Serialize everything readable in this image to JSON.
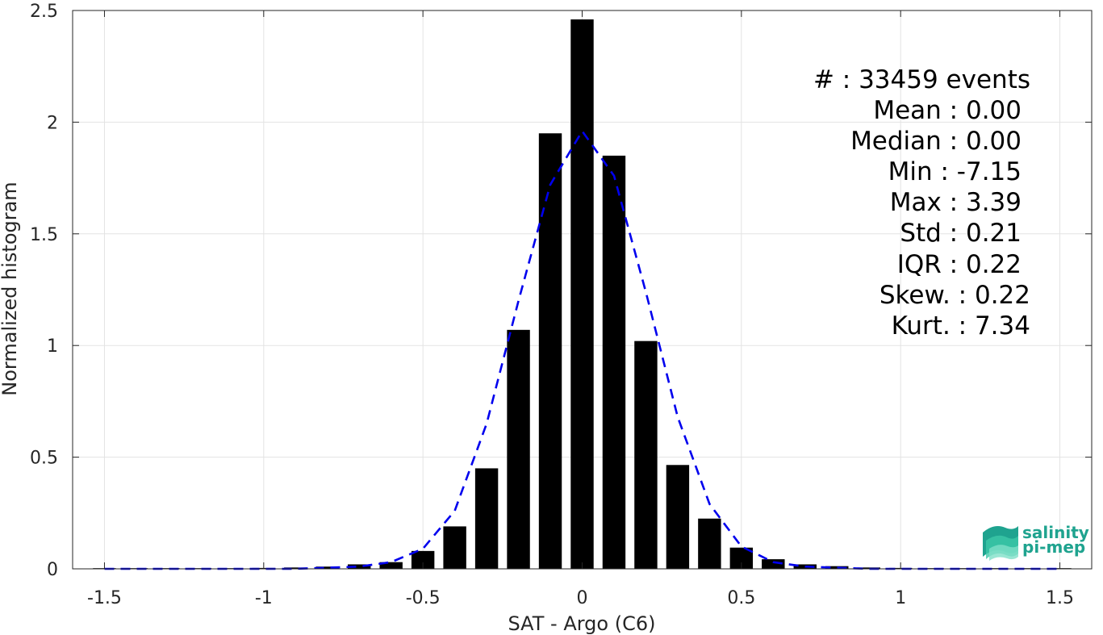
{
  "chart_data": {
    "type": "bar",
    "title": "",
    "xlabel": "SAT - Argo (C6)",
    "ylabel": "Normalized histogram",
    "xlim": [
      -1.6,
      1.6
    ],
    "ylim": [
      0,
      2.5
    ],
    "grid": true,
    "xticks": [
      -1.5,
      -1,
      -0.5,
      0,
      0.5,
      1,
      1.5
    ],
    "xtick_labels": [
      "-1.5",
      "-1",
      "-0.5",
      "0",
      "0.5",
      "1",
      "1.5"
    ],
    "yticks": [
      0,
      0.5,
      1,
      1.5,
      2,
      2.5
    ],
    "ytick_labels": [
      "0",
      "0.5",
      "1",
      "1.5",
      "2",
      "2.5"
    ],
    "bin_width": 0.1,
    "bar_fraction": 0.72,
    "bar_color": "#000000",
    "bins": [
      {
        "x": -1.5,
        "y": 0.003
      },
      {
        "x": -1.4,
        "y": 0.003
      },
      {
        "x": -1.3,
        "y": 0.003
      },
      {
        "x": -1.2,
        "y": 0.003
      },
      {
        "x": -1.1,
        "y": 0.003
      },
      {
        "x": -1.0,
        "y": 0.004
      },
      {
        "x": -0.9,
        "y": 0.006
      },
      {
        "x": -0.8,
        "y": 0.01
      },
      {
        "x": -0.7,
        "y": 0.02
      },
      {
        "x": -0.6,
        "y": 0.03
      },
      {
        "x": -0.5,
        "y": 0.08
      },
      {
        "x": -0.4,
        "y": 0.19
      },
      {
        "x": -0.3,
        "y": 0.45
      },
      {
        "x": -0.2,
        "y": 1.07
      },
      {
        "x": -0.1,
        "y": 1.95
      },
      {
        "x": 0.0,
        "y": 2.46
      },
      {
        "x": 0.1,
        "y": 1.85
      },
      {
        "x": 0.2,
        "y": 1.02
      },
      {
        "x": 0.3,
        "y": 0.465
      },
      {
        "x": 0.4,
        "y": 0.225
      },
      {
        "x": 0.5,
        "y": 0.095
      },
      {
        "x": 0.6,
        "y": 0.043
      },
      {
        "x": 0.7,
        "y": 0.02
      },
      {
        "x": 0.8,
        "y": 0.012
      },
      {
        "x": 0.9,
        "y": 0.006
      },
      {
        "x": 1.0,
        "y": 0.004
      },
      {
        "x": 1.1,
        "y": 0.003
      },
      {
        "x": 1.2,
        "y": 0.003
      },
      {
        "x": 1.3,
        "y": 0.003
      },
      {
        "x": 1.4,
        "y": 0.003
      },
      {
        "x": 1.5,
        "y": 0.003
      }
    ],
    "fit_curve": {
      "style": "dashed",
      "color": "#0000ee",
      "points": [
        [
          -1.5,
          0.0
        ],
        [
          -1.3,
          0.0
        ],
        [
          -1.1,
          0.0
        ],
        [
          -0.9,
          0.0
        ],
        [
          -0.7,
          0.01
        ],
        [
          -0.6,
          0.03
        ],
        [
          -0.5,
          0.09
        ],
        [
          -0.4,
          0.26
        ],
        [
          -0.3,
          0.65
        ],
        [
          -0.2,
          1.2
        ],
        [
          -0.1,
          1.72
        ],
        [
          0.0,
          1.96
        ],
        [
          0.1,
          1.76
        ],
        [
          0.2,
          1.24
        ],
        [
          0.3,
          0.68
        ],
        [
          0.4,
          0.29
        ],
        [
          0.5,
          0.1
        ],
        [
          0.6,
          0.03
        ],
        [
          0.7,
          0.01
        ],
        [
          0.9,
          0.0
        ],
        [
          1.1,
          0.0
        ],
        [
          1.3,
          0.0
        ],
        [
          1.5,
          0.0
        ]
      ]
    }
  },
  "stats": {
    "lines": [
      "#  : 33459 events",
      "Mean : 0.00",
      "Median : 0.00",
      "Min : -7.15",
      "Max : 3.39",
      "Std : 0.21",
      "IQR : 0.22",
      "Skew. : 0.22",
      "Kurt. : 7.34"
    ]
  },
  "logo": {
    "line1": "salinity",
    "line2": "pi-mep",
    "colors": [
      "#1fa38f",
      "#3cc8a8",
      "#7fe0c8"
    ]
  }
}
